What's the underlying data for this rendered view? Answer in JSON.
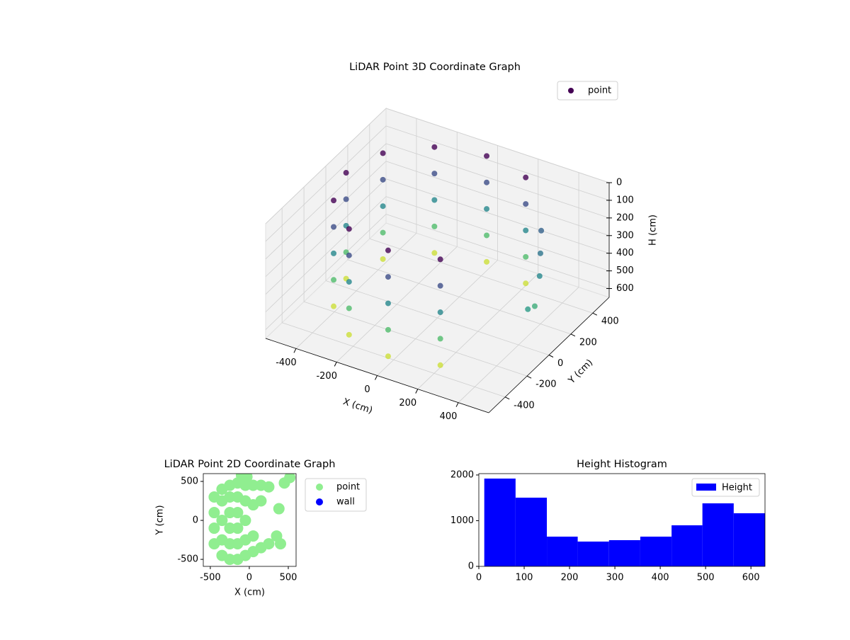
{
  "chart_data": [
    {
      "type": "scatter3d",
      "title": "LiDAR Point 3D Coordinate Graph",
      "xlabel": "X (cm)",
      "ylabel": "Y (cm)",
      "zlabel": "H (cm)",
      "xlim": [
        -550,
        550
      ],
      "ylim": [
        -550,
        550
      ],
      "zlim": [
        0,
        650
      ],
      "zinvert": true,
      "xticks": [
        -400,
        -200,
        0,
        200,
        400
      ],
      "yticks": [
        -400,
        -200,
        0,
        200,
        400
      ],
      "zticks": [
        0,
        100,
        200,
        300,
        400,
        500,
        600
      ],
      "colormap": "viridis",
      "grid": true,
      "legend": "upper right",
      "series": [
        {
          "name": "point",
          "x": [
            225,
            225,
            225,
            225,
            225,
            0,
            0,
            0,
            0,
            0,
            -225,
            -225,
            -225,
            -225,
            -225,
            -390,
            -390,
            -390,
            -390,
            -390,
            -450,
            -450,
            -450,
            -450,
            -450,
            -390,
            -390,
            -390,
            -390,
            -390,
            -225,
            -225,
            -225,
            -225,
            -225,
            0,
            0,
            0,
            0,
            0,
            225,
            225,
            225,
            225,
            225,
            400,
            450,
            500,
            350,
            480
          ],
          "y": [
            390,
            390,
            390,
            390,
            390,
            450,
            450,
            450,
            450,
            450,
            390,
            390,
            390,
            390,
            390,
            225,
            225,
            225,
            225,
            225,
            0,
            0,
            0,
            0,
            0,
            -225,
            -225,
            -225,
            -225,
            -225,
            -390,
            -390,
            -390,
            -390,
            -390,
            -450,
            -450,
            -450,
            -450,
            -450,
            -390,
            -390,
            -390,
            -390,
            -390,
            200,
            100,
            -100,
            300,
            0
          ],
          "z": [
            0,
            150,
            300,
            450,
            600,
            0,
            150,
            300,
            450,
            600,
            0,
            150,
            300,
            450,
            600,
            0,
            150,
            300,
            450,
            600,
            0,
            150,
            300,
            450,
            600,
            0,
            150,
            300,
            450,
            600,
            0,
            150,
            300,
            450,
            600,
            0,
            150,
            300,
            450,
            600,
            0,
            150,
            300,
            450,
            600,
            250,
            300,
            350,
            200,
            400
          ]
        }
      ]
    },
    {
      "type": "scatter",
      "title": "LiDAR Point 2D Coordinate Graph",
      "xlabel": "X (cm)",
      "ylabel": "Y (cm)",
      "xlim": [
        -590,
        600
      ],
      "ylim": [
        -590,
        600
      ],
      "xticks": [
        -500,
        0,
        500
      ],
      "yticks": [
        -500,
        0,
        500
      ],
      "legend": "outside upper right",
      "series": [
        {
          "name": "point",
          "color": "#90ee90",
          "x": [
            -450,
            -450,
            -450,
            -450,
            -350,
            -350,
            -350,
            -350,
            -350,
            -250,
            -250,
            -250,
            -250,
            -250,
            -250,
            -150,
            -150,
            -150,
            -150,
            -150,
            -150,
            -50,
            -50,
            -50,
            -50,
            -50,
            50,
            50,
            50,
            50,
            150,
            150,
            150,
            250,
            250,
            350,
            450,
            520,
            400,
            380,
            -100,
            -30
          ],
          "y": [
            -300,
            -100,
            100,
            300,
            -450,
            -250,
            0,
            250,
            400,
            -500,
            -300,
            -100,
            100,
            300,
            450,
            -500,
            -300,
            -100,
            100,
            300,
            480,
            -450,
            -250,
            0,
            250,
            450,
            -400,
            -200,
            200,
            450,
            -350,
            250,
            450,
            -300,
            430,
            -200,
            480,
            550,
            -300,
            150,
            580,
            560
          ]
        },
        {
          "name": "wall",
          "color": "#0000ff",
          "x": [],
          "y": []
        }
      ]
    },
    {
      "type": "histogram",
      "title": "Height Histogram",
      "bins": [
        12,
        81,
        150,
        218,
        287,
        356,
        425,
        493,
        562,
        631
      ],
      "xlim": [
        0,
        631
      ],
      "ylim": [
        0,
        2030
      ],
      "xticks": [
        0,
        100,
        200,
        300,
        400,
        500,
        600
      ],
      "yticks": [
        0,
        1000,
        2000
      ],
      "legend": "upper right",
      "series": [
        {
          "name": "Height",
          "color": "#0000ff",
          "values": [
            1922,
            1504,
            651,
            543,
            574,
            651,
            899,
            1380,
            1163
          ]
        }
      ]
    }
  ]
}
